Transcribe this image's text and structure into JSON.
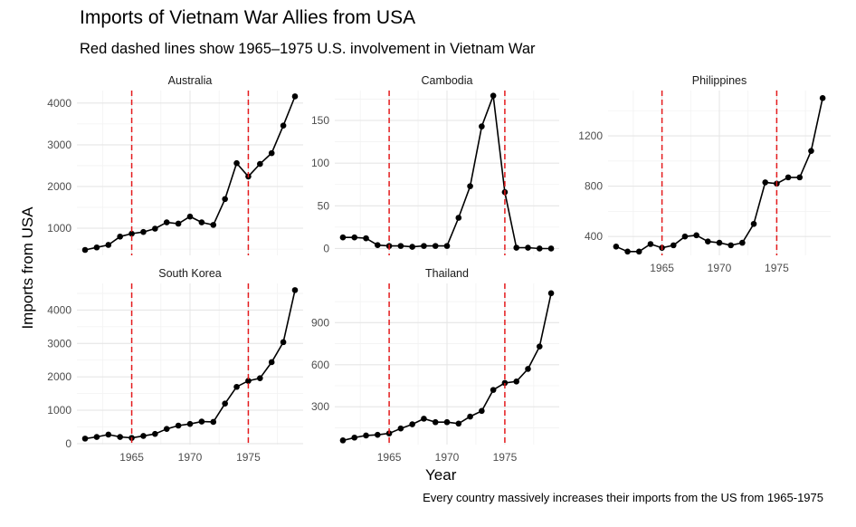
{
  "title": "Imports of Vietnam War Allies from USA",
  "subtitle": "Red dashed lines show 1965–1975 U.S. involvement in Vietnam War",
  "caption": "Every country massively increases their imports from the US from 1965-1975",
  "chart_data": {
    "type": "line",
    "xlabel": "Year",
    "ylabel": "Imports from USA",
    "grid": true,
    "reference_lines": {
      "x": [
        1965,
        1975
      ],
      "color": "#e41a1c",
      "style": "dashed"
    },
    "line_color": "#000000",
    "x": [
      1961,
      1962,
      1963,
      1964,
      1965,
      1966,
      1967,
      1968,
      1969,
      1970,
      1971,
      1972,
      1973,
      1974,
      1975,
      1976,
      1977,
      1978,
      1979
    ],
    "x_ticks": [
      1965,
      1970,
      1975
    ],
    "panels": [
      {
        "name": "Australia",
        "ylim": [
          350,
          4300
        ],
        "y_ticks": [
          1000,
          2000,
          3000,
          4000
        ],
        "values": [
          480,
          540,
          600,
          800,
          870,
          910,
          990,
          1140,
          1110,
          1280,
          1140,
          1080,
          1700,
          2560,
          2240,
          2540,
          2800,
          3460,
          4160
        ]
      },
      {
        "name": "Cambodia",
        "ylim": [
          -8,
          185
        ],
        "y_ticks": [
          0,
          50,
          100,
          150
        ],
        "values": [
          13,
          13,
          12,
          4,
          3,
          3,
          2,
          3,
          3,
          3,
          36,
          73,
          143,
          179,
          66,
          1,
          1,
          0,
          0
        ]
      },
      {
        "name": "Philippines",
        "ylim": [
          250,
          1560
        ],
        "y_ticks": [
          400,
          800,
          1200
        ],
        "values": [
          320,
          280,
          280,
          340,
          310,
          330,
          400,
          410,
          360,
          350,
          330,
          350,
          500,
          830,
          820,
          870,
          870,
          1080,
          1500
        ]
      },
      {
        "name": "South Korea",
        "ylim": [
          -30,
          4800
        ],
        "y_ticks": [
          0,
          1000,
          2000,
          3000,
          4000
        ],
        "values": [
          150,
          200,
          270,
          200,
          170,
          230,
          290,
          440,
          540,
          590,
          660,
          650,
          1200,
          1700,
          1880,
          1960,
          2440,
          3040,
          4600
        ]
      },
      {
        "name": "Thailand",
        "ylim": [
          30,
          1180
        ],
        "y_ticks": [
          300,
          600,
          900
        ],
        "values": [
          60,
          80,
          95,
          100,
          110,
          145,
          175,
          215,
          190,
          190,
          180,
          230,
          270,
          420,
          470,
          480,
          570,
          730,
          1110
        ]
      }
    ]
  }
}
